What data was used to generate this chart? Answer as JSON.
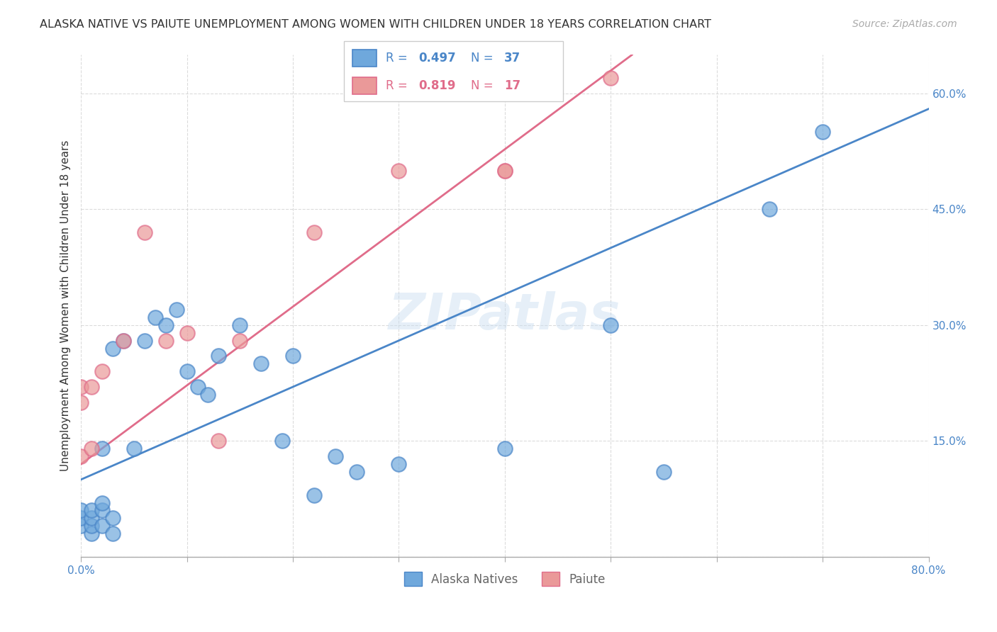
{
  "title": "ALASKA NATIVE VS PAIUTE UNEMPLOYMENT AMONG WOMEN WITH CHILDREN UNDER 18 YEARS CORRELATION CHART",
  "source": "Source: ZipAtlas.com",
  "ylabel": "Unemployment Among Women with Children Under 18 years",
  "xlim": [
    0,
    0.8
  ],
  "ylim": [
    0,
    0.65
  ],
  "xticks": [
    0.0,
    0.1,
    0.2,
    0.3,
    0.4,
    0.5,
    0.6,
    0.7,
    0.8
  ],
  "xticklabels": [
    "0.0%",
    "",
    "",
    "",
    "",
    "",
    "",
    "",
    "80.0%"
  ],
  "yticks": [
    0.0,
    0.15,
    0.3,
    0.45,
    0.6
  ],
  "yticklabels": [
    "",
    "15.0%",
    "30.0%",
    "45.0%",
    "60.0%"
  ],
  "alaska_color": "#6fa8dc",
  "paiute_color": "#ea9999",
  "alaska_line_color": "#4a86c8",
  "paiute_line_color": "#e06c8a",
  "watermark": "ZIPatlas",
  "legend_alaska_r": "0.497",
  "legend_alaska_n": "37",
  "legend_paiute_r": "0.819",
  "legend_paiute_n": "17",
  "alaska_points_x": [
    0.0,
    0.0,
    0.0,
    0.01,
    0.01,
    0.01,
    0.01,
    0.02,
    0.02,
    0.02,
    0.02,
    0.03,
    0.03,
    0.03,
    0.04,
    0.05,
    0.06,
    0.07,
    0.08,
    0.09,
    0.1,
    0.11,
    0.12,
    0.13,
    0.15,
    0.17,
    0.19,
    0.2,
    0.22,
    0.24,
    0.26,
    0.3,
    0.4,
    0.5,
    0.55,
    0.65,
    0.7
  ],
  "alaska_points_y": [
    0.04,
    0.05,
    0.06,
    0.03,
    0.04,
    0.05,
    0.06,
    0.04,
    0.06,
    0.07,
    0.14,
    0.03,
    0.05,
    0.27,
    0.28,
    0.14,
    0.28,
    0.31,
    0.3,
    0.32,
    0.24,
    0.22,
    0.21,
    0.26,
    0.3,
    0.25,
    0.15,
    0.26,
    0.08,
    0.13,
    0.11,
    0.12,
    0.14,
    0.3,
    0.11,
    0.45,
    0.55
  ],
  "paiute_points_x": [
    0.0,
    0.0,
    0.0,
    0.01,
    0.01,
    0.02,
    0.04,
    0.06,
    0.08,
    0.1,
    0.13,
    0.15,
    0.22,
    0.3,
    0.4,
    0.4,
    0.5
  ],
  "paiute_points_y": [
    0.13,
    0.2,
    0.22,
    0.14,
    0.22,
    0.24,
    0.28,
    0.42,
    0.28,
    0.29,
    0.15,
    0.28,
    0.42,
    0.5,
    0.5,
    0.5,
    0.62
  ],
  "alaska_fit_x": [
    0.0,
    0.8
  ],
  "alaska_fit_y": [
    0.1,
    0.58
  ],
  "paiute_fit_x": [
    0.0,
    0.52
  ],
  "paiute_fit_y": [
    0.12,
    0.65
  ]
}
